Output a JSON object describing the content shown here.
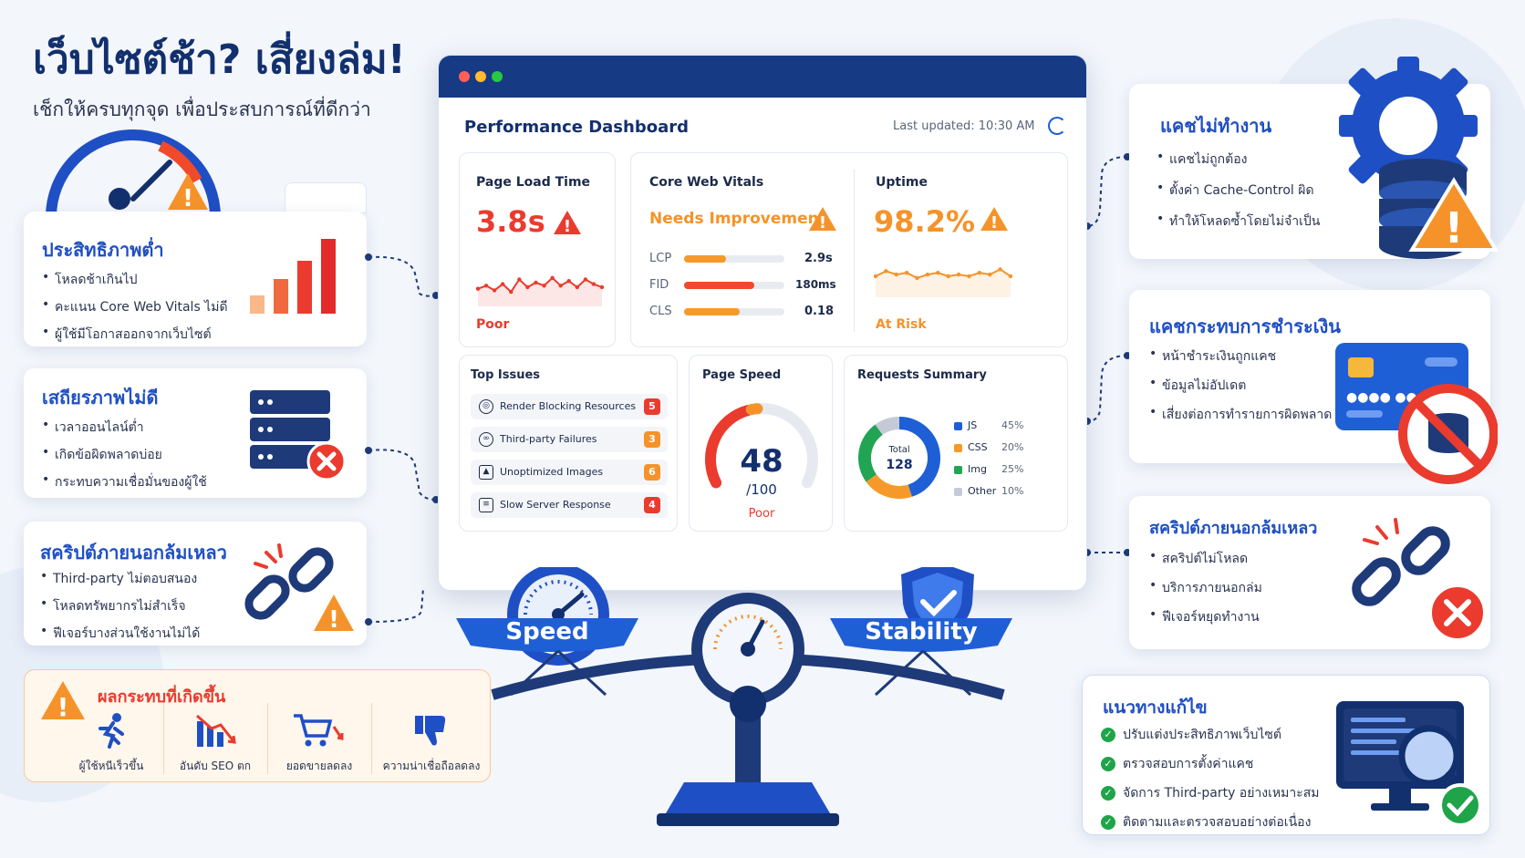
{
  "headline": {
    "title": "เว็บไซต์ช้า? เสี่ยงล่ม!",
    "subtitle": "เช็กให้ครบทุกจุด เพื่อประสบการณ์ที่ดีกว่า"
  },
  "left_cards": [
    {
      "title": "ประสิทธิภาพต่ำ",
      "items": [
        "โหลดช้าเกินไป",
        "คะแนน Core Web Vitals ไม่ดี",
        "ผู้ใช้มีโอกาสออกจากเว็บไซต์"
      ]
    },
    {
      "title": "เสถียรภาพไม่ดี",
      "items": [
        "เวลาออนไลน์ต่ำ",
        "เกิดข้อผิดพลาดบ่อย",
        "กระทบความเชื่อมั่นของผู้ใช้"
      ]
    },
    {
      "title": "สคริปต์ภายนอกล้มเหลว",
      "items": [
        "Third-party ไม่ตอบสนอง",
        "โหลดทรัพยากรไม่สำเร็จ",
        "ฟีเจอร์บางส่วนใช้งานไม่ได้"
      ]
    }
  ],
  "impact": {
    "title": "ผลกระทบที่เกิดขึ้น",
    "items": [
      {
        "label": "ผู้ใช้หนีเร็วขึ้น",
        "icon": "running-person-icon"
      },
      {
        "label": "อันดับ SEO ตก",
        "icon": "falling-chart-icon"
      },
      {
        "label": "ยอดขายลดลง",
        "icon": "shopping-cart-icon"
      },
      {
        "label": "ความน่าเชื่อถือลดลง",
        "icon": "thumbs-down-icon"
      }
    ]
  },
  "dashboard": {
    "title": "Performance Dashboard",
    "last_updated": "Last updated: 10:30 AM",
    "page_load": {
      "title": "Page Load Time",
      "value": "3.8s",
      "status": "Poor",
      "trend": [
        0.45,
        0.55,
        0.4,
        0.6,
        0.35,
        0.75,
        0.5,
        0.65,
        0.55,
        0.8,
        0.55,
        0.7,
        0.5,
        0.75,
        0.6,
        0.5
      ]
    },
    "cwv": {
      "title": "Core Web Vitals",
      "status": "Needs Improvement",
      "metrics": [
        {
          "name": "LCP",
          "value": "2.9s",
          "fill": 0.42,
          "color": "#f59a2a"
        },
        {
          "name": "FID",
          "value": "180ms",
          "fill": 0.7,
          "color": "#f04a2a"
        },
        {
          "name": "CLS",
          "value": "0.18",
          "fill": 0.55,
          "color": "#f59a2a"
        }
      ]
    },
    "uptime": {
      "title": "Uptime",
      "value": "98.2%",
      "status": "At Risk",
      "trend": [
        0.5,
        0.65,
        0.55,
        0.6,
        0.45,
        0.55,
        0.6,
        0.5,
        0.55,
        0.5,
        0.6,
        0.55,
        0.7,
        0.5
      ]
    },
    "top_issues": {
      "title": "Top Issues",
      "items": [
        {
          "label": "Render Blocking Resources",
          "count": "5",
          "color": "#ea3b2e",
          "icon": "fingerprint-icon"
        },
        {
          "label": "Third-party Failures",
          "count": "3",
          "color": "#f5932a",
          "icon": "link-icon"
        },
        {
          "label": "Unoptimized Images",
          "count": "6",
          "color": "#f5932a",
          "icon": "image-icon"
        },
        {
          "label": "Slow Server Response",
          "count": "4",
          "color": "#ea3b2e",
          "icon": "server-icon"
        }
      ]
    },
    "page_speed": {
      "title": "Page Speed",
      "score": 48,
      "score_label": "48",
      "max_label": "/100",
      "status": "Poor"
    },
    "requests": {
      "title": "Requests Summary",
      "total_label": "Total",
      "total": "128",
      "segments": [
        {
          "name": "JS",
          "pct": 45,
          "pct_label": "45%",
          "color": "#1f5fd6"
        },
        {
          "name": "CSS",
          "pct": 20,
          "pct_label": "20%",
          "color": "#f59a2a"
        },
        {
          "name": "Img",
          "pct": 25,
          "pct_label": "25%",
          "color": "#22a455"
        },
        {
          "name": "Other",
          "pct": 10,
          "pct_label": "10%",
          "color": "#c4cbd6"
        }
      ]
    }
  },
  "balance": {
    "left_label": "Speed",
    "right_label": "Stability"
  },
  "right_cards": [
    {
      "title": "แคชไม่ทำงาน",
      "items": [
        "แคชไม่ถูกต้อง",
        "ตั้งค่า Cache-Control ผิด",
        "ทำให้โหลดซ้ำโดยไม่จำเป็น"
      ]
    },
    {
      "title": "แคชกระทบการชำระเงิน",
      "items": [
        "หน้าชำระเงินถูกแคช",
        "ข้อมูลไม่อัปเดต",
        "เสี่ยงต่อการทำรายการผิดพลาด"
      ]
    },
    {
      "title": "สคริปต์ภายนอกล้มเหลว",
      "items": [
        "สคริปต์ไม่โหลด",
        "บริการภายนอกล่ม",
        "ฟีเจอร์หยุดทำงาน"
      ]
    }
  ],
  "solutions": {
    "title": "แนวทางแก้ไข",
    "items": [
      "ปรับแต่งประสิทธิภาพเว็บไซต์",
      "ตรวจสอบการตั้งค่าแคช",
      "จัดการ Third-party อย่างเหมาะสม",
      "ติดตามและตรวจสอบอย่างต่อเนื่อง"
    ]
  },
  "colors": {
    "primary": "#1f4fc4",
    "navy": "#12306e",
    "danger": "#ea3b2e",
    "warning": "#f5932a",
    "success": "#1fa44a"
  }
}
